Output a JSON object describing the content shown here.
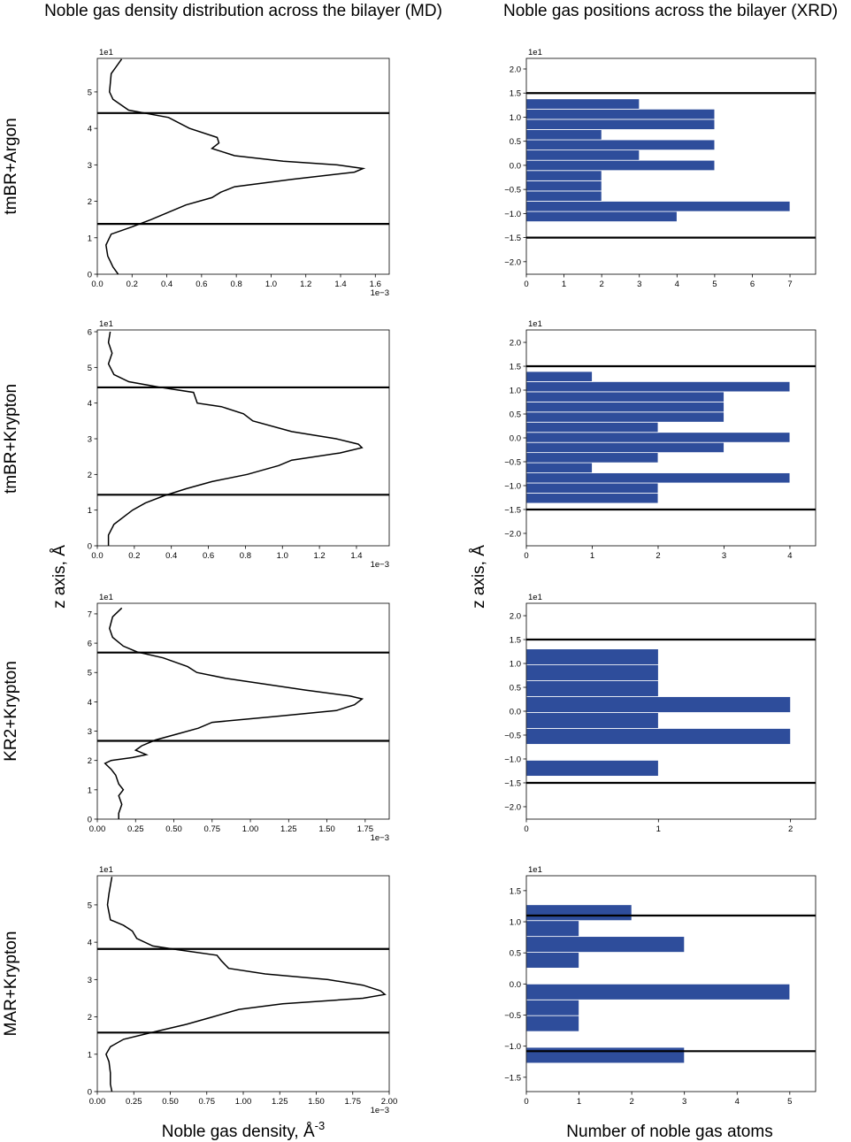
{
  "column_titles": [
    "Noble gas density distribution across the bilayer (MD)",
    "Noble gas positions across the bilayer (XRD)"
  ],
  "row_labels": [
    "tmBR+Argon",
    "tmBR+Krypton",
    "KR2+Krypton",
    "MAR+Krypton"
  ],
  "y_label": "z axis, Å",
  "x_label_left": "Noble gas density, Å",
  "x_label_left_exponent": "-3",
  "x_label_right": "Number of noble gas atoms",
  "chart_data": [
    {
      "type": "line",
      "orientation": "horizontal",
      "color": "#000000",
      "x_offset": "1e−3",
      "y_offset": "1e1",
      "xlim": [
        0,
        1.68
      ],
      "ylim": [
        0,
        5.92
      ],
      "xticks": [
        {
          "value": 0,
          "label": "0.0"
        },
        {
          "value": 0.2,
          "label": "0.2"
        },
        {
          "value": 0.4,
          "label": "0.4"
        },
        {
          "value": 0.6,
          "label": "0.6"
        },
        {
          "value": 0.8,
          "label": "0.8"
        },
        {
          "value": 1.0,
          "label": "1.0"
        },
        {
          "value": 1.2,
          "label": "1.2"
        },
        {
          "value": 1.4,
          "label": "1.4"
        },
        {
          "value": 1.6,
          "label": "1.6"
        }
      ],
      "yticks": [
        0,
        1,
        2,
        3,
        4,
        5
      ],
      "hlines": [
        4.42,
        1.38
      ],
      "hline_color": "#000000",
      "y": [
        5.9,
        5.5,
        5.0,
        4.8,
        4.5,
        4.3,
        4.0,
        3.75,
        3.6,
        3.45,
        3.25,
        3.1,
        3.0,
        2.9,
        2.8,
        2.6,
        2.4,
        2.25,
        2.1,
        1.9,
        1.7,
        1.5,
        1.3,
        1.1,
        0.8,
        0.5,
        0.2,
        0
      ],
      "values": [
        0.14,
        0.08,
        0.07,
        0.09,
        0.18,
        0.41,
        0.53,
        0.69,
        0.7,
        0.66,
        0.79,
        1.07,
        1.38,
        1.53,
        1.48,
        1.12,
        0.79,
        0.71,
        0.66,
        0.51,
        0.41,
        0.31,
        0.2,
        0.08,
        0.05,
        0.06,
        0.09,
        0.12
      ]
    },
    {
      "type": "histogram",
      "orientation": "horizontal",
      "color": "#2e4d9b",
      "y_offset": "1e1",
      "xlim": [
        0,
        7.68
      ],
      "ylim": [
        -2.26,
        2.22
      ],
      "xticks": [
        0,
        1,
        2,
        3,
        4,
        5,
        6,
        7
      ],
      "yticks": [
        {
          "value": -2,
          "label": "−2.0"
        },
        {
          "value": -1.5,
          "label": "−1.5"
        },
        {
          "value": -1,
          "label": "−1.0"
        },
        {
          "value": -0.5,
          "label": "−0.5"
        },
        {
          "value": 0,
          "label": "0.0"
        },
        {
          "value": 0.5,
          "label": "0.5"
        },
        {
          "value": 1,
          "label": "1.0"
        },
        {
          "value": 1.5,
          "label": "1.5"
        },
        {
          "value": 2,
          "label": "2.0"
        }
      ],
      "hlines": [
        1.5,
        -1.5
      ],
      "hline_color": "#000000",
      "bins": [
        -1.17,
        -0.9575,
        -0.745,
        -0.5325,
        -0.32,
        -0.1075,
        0.105,
        0.3175,
        0.53,
        0.7425,
        0.955,
        1.1675,
        1.38
      ],
      "values": [
        4,
        7,
        2,
        2,
        2,
        5,
        3,
        5,
        2,
        5,
        5,
        3
      ]
    },
    {
      "type": "line",
      "orientation": "horizontal",
      "color": "#000000",
      "x_offset": "1e−3",
      "y_offset": "1e1",
      "xlim": [
        0,
        1.577
      ],
      "ylim": [
        0,
        6.05
      ],
      "xticks": [
        {
          "value": 0,
          "label": "0.0"
        },
        {
          "value": 0.2,
          "label": "0.2"
        },
        {
          "value": 0.4,
          "label": "0.4"
        },
        {
          "value": 0.6,
          "label": "0.6"
        },
        {
          "value": 0.8,
          "label": "0.8"
        },
        {
          "value": 1.0,
          "label": "1.0"
        },
        {
          "value": 1.2,
          "label": "1.2"
        },
        {
          "value": 1.4,
          "label": "1.4"
        }
      ],
      "yticks": [
        0,
        1,
        2,
        3,
        4,
        5,
        6
      ],
      "hlines": [
        4.44,
        1.43
      ],
      "hline_color": "#000000",
      "y": [
        6.0,
        5.7,
        5.4,
        5.1,
        4.8,
        4.6,
        4.45,
        4.3,
        4.0,
        3.9,
        3.7,
        3.5,
        3.2,
        3.0,
        2.85,
        2.75,
        2.6,
        2.4,
        2.25,
        2.0,
        1.8,
        1.6,
        1.4,
        1.2,
        1.0,
        0.6,
        0.3,
        0
      ],
      "values": [
        0.07,
        0.06,
        0.08,
        0.06,
        0.09,
        0.17,
        0.33,
        0.52,
        0.54,
        0.67,
        0.79,
        0.84,
        1.05,
        1.29,
        1.41,
        1.43,
        1.31,
        1.05,
        0.98,
        0.81,
        0.62,
        0.48,
        0.36,
        0.26,
        0.19,
        0.09,
        0.06,
        0.06
      ]
    },
    {
      "type": "histogram",
      "orientation": "horizontal",
      "color": "#2e4d9b",
      "y_offset": "1e1",
      "xlim": [
        0,
        4.39
      ],
      "ylim": [
        -2.26,
        2.26
      ],
      "xticks": [
        0,
        1,
        2,
        3,
        4
      ],
      "yticks": [
        {
          "value": -2,
          "label": "−2.0"
        },
        {
          "value": -1.5,
          "label": "−1.5"
        },
        {
          "value": -1,
          "label": "−1.0"
        },
        {
          "value": -0.5,
          "label": "−0.5"
        },
        {
          "value": 0,
          "label": "0.0"
        },
        {
          "value": 0.5,
          "label": "0.5"
        },
        {
          "value": 1,
          "label": "1.0"
        },
        {
          "value": 1.5,
          "label": "1.5"
        },
        {
          "value": 2,
          "label": "2.0"
        }
      ],
      "hlines": [
        1.5,
        -1.5
      ],
      "hline_color": "#000000",
      "bins": [
        -1.37,
        -1.158,
        -0.945,
        -0.733,
        -0.521,
        -0.308,
        -0.096,
        0.116,
        0.329,
        0.541,
        0.753,
        0.965,
        1.178,
        1.39
      ],
      "values": [
        2,
        2,
        4,
        1,
        2,
        3,
        4,
        2,
        3,
        3,
        3,
        4,
        1
      ]
    },
    {
      "type": "line",
      "orientation": "horizontal",
      "color": "#000000",
      "x_offset": "1e−3",
      "y_offset": "1e1",
      "xlim": [
        0,
        1.907
      ],
      "ylim": [
        0,
        7.36
      ],
      "xticks": [
        {
          "value": 0,
          "label": "0.00"
        },
        {
          "value": 0.25,
          "label": "0.25"
        },
        {
          "value": 0.5,
          "label": "0.50"
        },
        {
          "value": 0.75,
          "label": "0.75"
        },
        {
          "value": 1.0,
          "label": "1.00"
        },
        {
          "value": 1.25,
          "label": "1.25"
        },
        {
          "value": 1.5,
          "label": "1.50"
        },
        {
          "value": 1.75,
          "label": "1.75"
        }
      ],
      "yticks": [
        0,
        1,
        2,
        3,
        4,
        5,
        6,
        7
      ],
      "hlines": [
        5.68,
        2.67
      ],
      "hline_color": "#000000",
      "y": [
        7.2,
        6.9,
        6.5,
        6.2,
        5.9,
        5.7,
        5.5,
        5.2,
        5.0,
        4.8,
        4.6,
        4.4,
        4.2,
        4.1,
        3.9,
        3.7,
        3.5,
        3.3,
        3.1,
        2.9,
        2.7,
        2.5,
        2.35,
        2.2,
        2.1,
        2.0,
        1.9,
        1.7,
        1.5,
        1.2,
        1.0,
        0.8,
        0.5,
        0.2,
        0
      ],
      "values": [
        0.16,
        0.1,
        0.08,
        0.1,
        0.17,
        0.26,
        0.43,
        0.59,
        0.65,
        0.84,
        1.1,
        1.36,
        1.65,
        1.73,
        1.68,
        1.56,
        1.16,
        0.75,
        0.66,
        0.52,
        0.38,
        0.29,
        0.25,
        0.32,
        0.23,
        0.09,
        0.05,
        0.09,
        0.12,
        0.14,
        0.17,
        0.14,
        0.16,
        0.14,
        0.14
      ]
    },
    {
      "type": "histogram",
      "orientation": "horizontal",
      "color": "#2e4d9b",
      "y_offset": "1e1",
      "xlim": [
        0,
        2.19
      ],
      "ylim": [
        -2.26,
        2.26
      ],
      "xticks": [
        0,
        1,
        2
      ],
      "yticks": [
        {
          "value": -2,
          "label": "−2.0"
        },
        {
          "value": -1.5,
          "label": "−1.5"
        },
        {
          "value": -1,
          "label": "−1.0"
        },
        {
          "value": -0.5,
          "label": "−0.5"
        },
        {
          "value": 0,
          "label": "0.0"
        },
        {
          "value": 0.5,
          "label": "0.5"
        },
        {
          "value": 1,
          "label": "1.0"
        },
        {
          "value": 1.5,
          "label": "1.5"
        },
        {
          "value": 2,
          "label": "2.0"
        }
      ],
      "hlines": [
        1.5,
        -1.5
      ],
      "hline_color": "#000000",
      "bins": [
        -1.36,
        -1.027,
        -0.694,
        -0.361,
        -0.028,
        0.305,
        0.638,
        0.971,
        1.304
      ],
      "values": [
        1,
        0,
        2,
        1,
        2,
        1,
        1,
        1
      ]
    },
    {
      "type": "line",
      "orientation": "horizontal",
      "color": "#000000",
      "x_offset": "1e−3",
      "y_offset": "1e1",
      "xlim": [
        0,
        2.0
      ],
      "ylim": [
        0,
        5.78
      ],
      "xticks": [
        {
          "value": 0,
          "label": "0.00"
        },
        {
          "value": 0.25,
          "label": "0.25"
        },
        {
          "value": 0.5,
          "label": "0.50"
        },
        {
          "value": 0.75,
          "label": "0.75"
        },
        {
          "value": 1.0,
          "label": "1.00"
        },
        {
          "value": 1.25,
          "label": "1.25"
        },
        {
          "value": 1.5,
          "label": "1.50"
        },
        {
          "value": 1.75,
          "label": "1.75"
        },
        {
          "value": 2.0,
          "label": "2.00"
        }
      ],
      "yticks": [
        0,
        1,
        2,
        3,
        4,
        5
      ],
      "hlines": [
        3.82,
        1.58
      ],
      "hline_color": "#000000",
      "y": [
        5.75,
        5.3,
        5.0,
        4.6,
        4.45,
        4.3,
        4.1,
        3.9,
        3.8,
        3.65,
        3.5,
        3.3,
        3.15,
        3.0,
        2.85,
        2.7,
        2.6,
        2.5,
        2.35,
        2.2,
        2.0,
        1.8,
        1.6,
        1.4,
        1.2,
        1.0,
        0.8,
        0.5,
        0.2,
        0
      ],
      "values": [
        0.1,
        0.08,
        0.07,
        0.09,
        0.18,
        0.24,
        0.27,
        0.38,
        0.55,
        0.82,
        0.85,
        0.9,
        1.15,
        1.58,
        1.82,
        1.94,
        1.97,
        1.82,
        1.27,
        0.97,
        0.79,
        0.61,
        0.39,
        0.18,
        0.09,
        0.06,
        0.08,
        0.09,
        0.09,
        0.1
      ]
    },
    {
      "type": "histogram",
      "orientation": "horizontal",
      "color": "#2e4d9b",
      "y_offset": "1e1",
      "xlim": [
        0,
        5.49
      ],
      "ylim": [
        -1.73,
        1.74
      ],
      "xticks": [
        0,
        1,
        2,
        3,
        4,
        5
      ],
      "yticks": [
        {
          "value": -1.5,
          "label": "−1.5"
        },
        {
          "value": -1,
          "label": "−1.0"
        },
        {
          "value": -0.5,
          "label": "−0.5"
        },
        {
          "value": 0,
          "label": "0.0"
        },
        {
          "value": 0.5,
          "label": "0.5"
        },
        {
          "value": 1,
          "label": "1.0"
        },
        {
          "value": 1.5,
          "label": "1.5"
        }
      ],
      "hlines": [
        1.1,
        -1.08
      ],
      "hline_color": "#000000",
      "bins": [
        -1.273,
        -1.019,
        -0.764,
        -0.509,
        -0.255,
        0,
        0.255,
        0.509,
        0.764,
        1.019,
        1.274
      ],
      "values": [
        3,
        0,
        1,
        1,
        5,
        0,
        1,
        3,
        1,
        2
      ]
    }
  ]
}
